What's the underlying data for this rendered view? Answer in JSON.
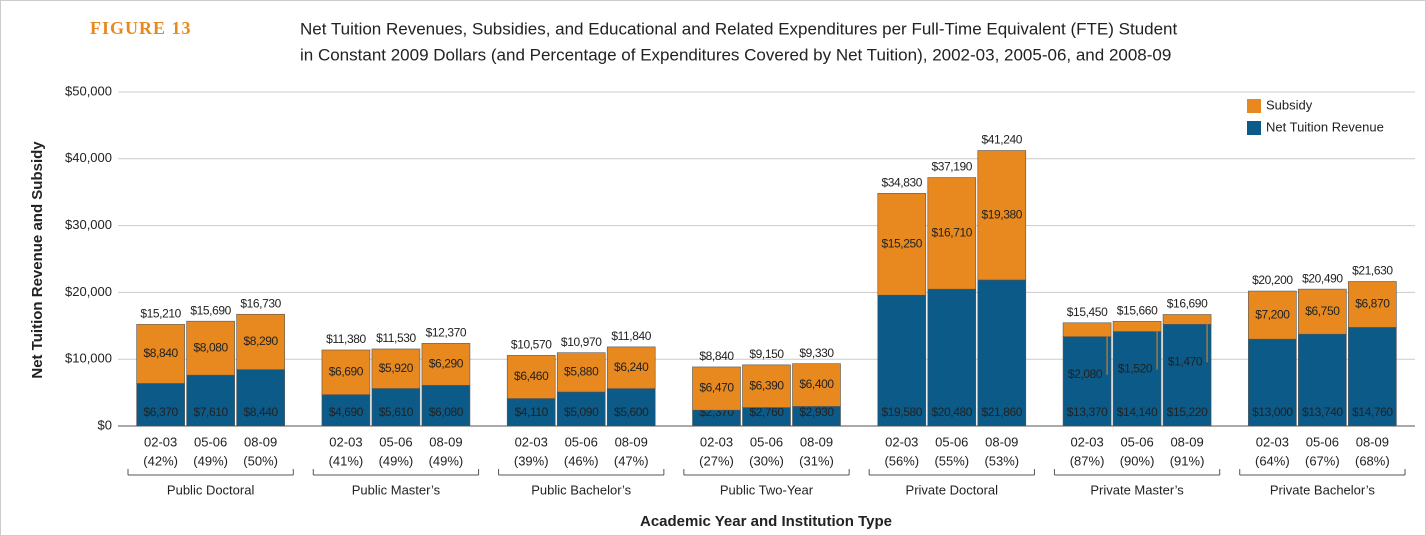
{
  "chart_data": {
    "type": "bar",
    "stacked": true,
    "figure_label": "FIGURE 13",
    "title": [
      "Net Tuition Revenues, Subsidies, and Educational and Related Expenditures per Full-Time Equivalent (FTE) Student",
      "in Constant 2009 Dollars (and Percentage of Expenditures Covered by Net Tuition), 2002-03, 2005-06, and 2008-09"
    ],
    "y_label": "Net Tuition Revenue and Subsidy",
    "x_label": "Academic Year and Institution Type",
    "groups": [
      "Public Doctoral",
      "Public Master’s",
      "Public Bachelor’s",
      "Public Two-Year",
      "Private Doctoral",
      "Private Master’s",
      "Private Bachelor’s"
    ],
    "categories": [
      "02-03",
      "05-06",
      "08-09",
      "02-03",
      "05-06",
      "08-09",
      "02-03",
      "05-06",
      "08-09",
      "02-03",
      "05-06",
      "08-09",
      "02-03",
      "05-06",
      "08-09",
      "02-03",
      "05-06",
      "08-09",
      "02-03",
      "05-06",
      "08-09"
    ],
    "share_labels": [
      "(42%)",
      "(49%)",
      "(50%)",
      "(41%)",
      "(49%)",
      "(49%)",
      "(39%)",
      "(46%)",
      "(47%)",
      "(27%)",
      "(30%)",
      "(31%)",
      "(56%)",
      "(55%)",
      "(53%)",
      "(87%)",
      "(90%)",
      "(91%)",
      "(64%)",
      "(67%)",
      "(68%)"
    ],
    "total_labels": [
      "$15,210",
      "$15,690",
      "$16,730",
      "$11,380",
      "$11,530",
      "$12,370",
      "$10,570",
      "$10,970",
      "$11,840",
      "$8,840",
      "$9,150",
      "$9,330",
      "$34,830",
      "$37,190",
      "$41,240",
      "$15,450",
      "$15,660",
      "$16,690",
      "$20,200",
      "$20,490",
      "$21,630"
    ],
    "series": [
      {
        "name": "Net Tuition Revenue",
        "color": "#0b5a87",
        "values": [
          6370,
          7610,
          8440,
          4690,
          5610,
          6080,
          4110,
          5090,
          5600,
          2370,
          2760,
          2930,
          19580,
          20480,
          21860,
          13370,
          14140,
          15220,
          13000,
          13740,
          14760
        ],
        "value_labels": [
          "$6,370",
          "$7,610",
          "$8,440",
          "$4,690",
          "$5,610",
          "$6,080",
          "$4,110",
          "$5,090",
          "$5,600",
          "$2,370",
          "$2,760",
          "$2,930",
          "$19,580",
          "$20,480",
          "$21,860",
          "$13,370",
          "$14,140",
          "$15,220",
          "$13,000",
          "$13,740",
          "$14,760"
        ]
      },
      {
        "name": "Subsidy",
        "color": "#e8891f",
        "values": [
          8840,
          8080,
          8290,
          6690,
          5920,
          6290,
          6460,
          5880,
          6240,
          6470,
          6390,
          6400,
          15250,
          16710,
          19380,
          2080,
          1520,
          1470,
          7200,
          6750,
          6870
        ],
        "value_labels": [
          "$8,840",
          "$8,080",
          "$8,290",
          "$6,690",
          "$5,920",
          "$6,290",
          "$6,460",
          "$5,880",
          "$6,240",
          "$6,470",
          "$6,390",
          "$6,400",
          "$15,250",
          "$16,710",
          "$19,380",
          "$2,080",
          "$1,520",
          "$1,470",
          "$7,200",
          "$6,750",
          "$6,870"
        ]
      }
    ],
    "ylim": [
      0,
      50000
    ],
    "yticks": [
      {
        "value": 0,
        "label": "$0"
      },
      {
        "value": 10000,
        "label": "$10,000"
      },
      {
        "value": 20000,
        "label": "$20,000"
      },
      {
        "value": 30000,
        "label": "$30,000"
      },
      {
        "value": 40000,
        "label": "$40,000"
      },
      {
        "value": 50000,
        "label": "$50,000"
      }
    ],
    "grid": true,
    "legend": "top-right"
  }
}
